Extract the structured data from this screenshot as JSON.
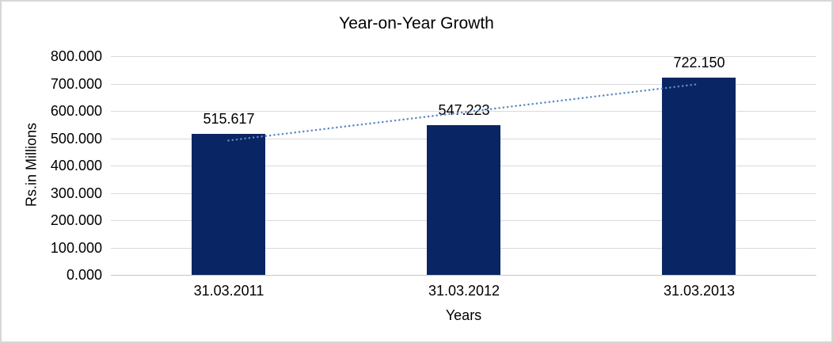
{
  "chart_data": {
    "type": "bar",
    "title": "Year-on-Year Growth",
    "xlabel": "Years",
    "ylabel": "Rs.in Millions",
    "categories": [
      "31.03.2011",
      "31.03.2012",
      "31.03.2013"
    ],
    "values": [
      515.617,
      547.223,
      722.15
    ],
    "value_labels": [
      "515.617",
      "547.223",
      "722.150"
    ],
    "ylim": [
      0,
      800
    ],
    "ytick_step": 100,
    "ytick_labels": [
      "0.000",
      "100.000",
      "200.000",
      "300.000",
      "400.000",
      "500.000",
      "600.000",
      "700.000",
      "800.000"
    ],
    "grid": true,
    "legend_position": "none",
    "trendline": {
      "type": "linear",
      "style": "dotted",
      "series": "values"
    },
    "colors": {
      "bar": "#0a2563",
      "trendline": "#5b8ac6",
      "gridline": "#d9d9d9",
      "axis_line": "#c6c6c6",
      "text": "#000000",
      "frame_border": "#d7d7d7",
      "background": "#ffffff"
    }
  }
}
